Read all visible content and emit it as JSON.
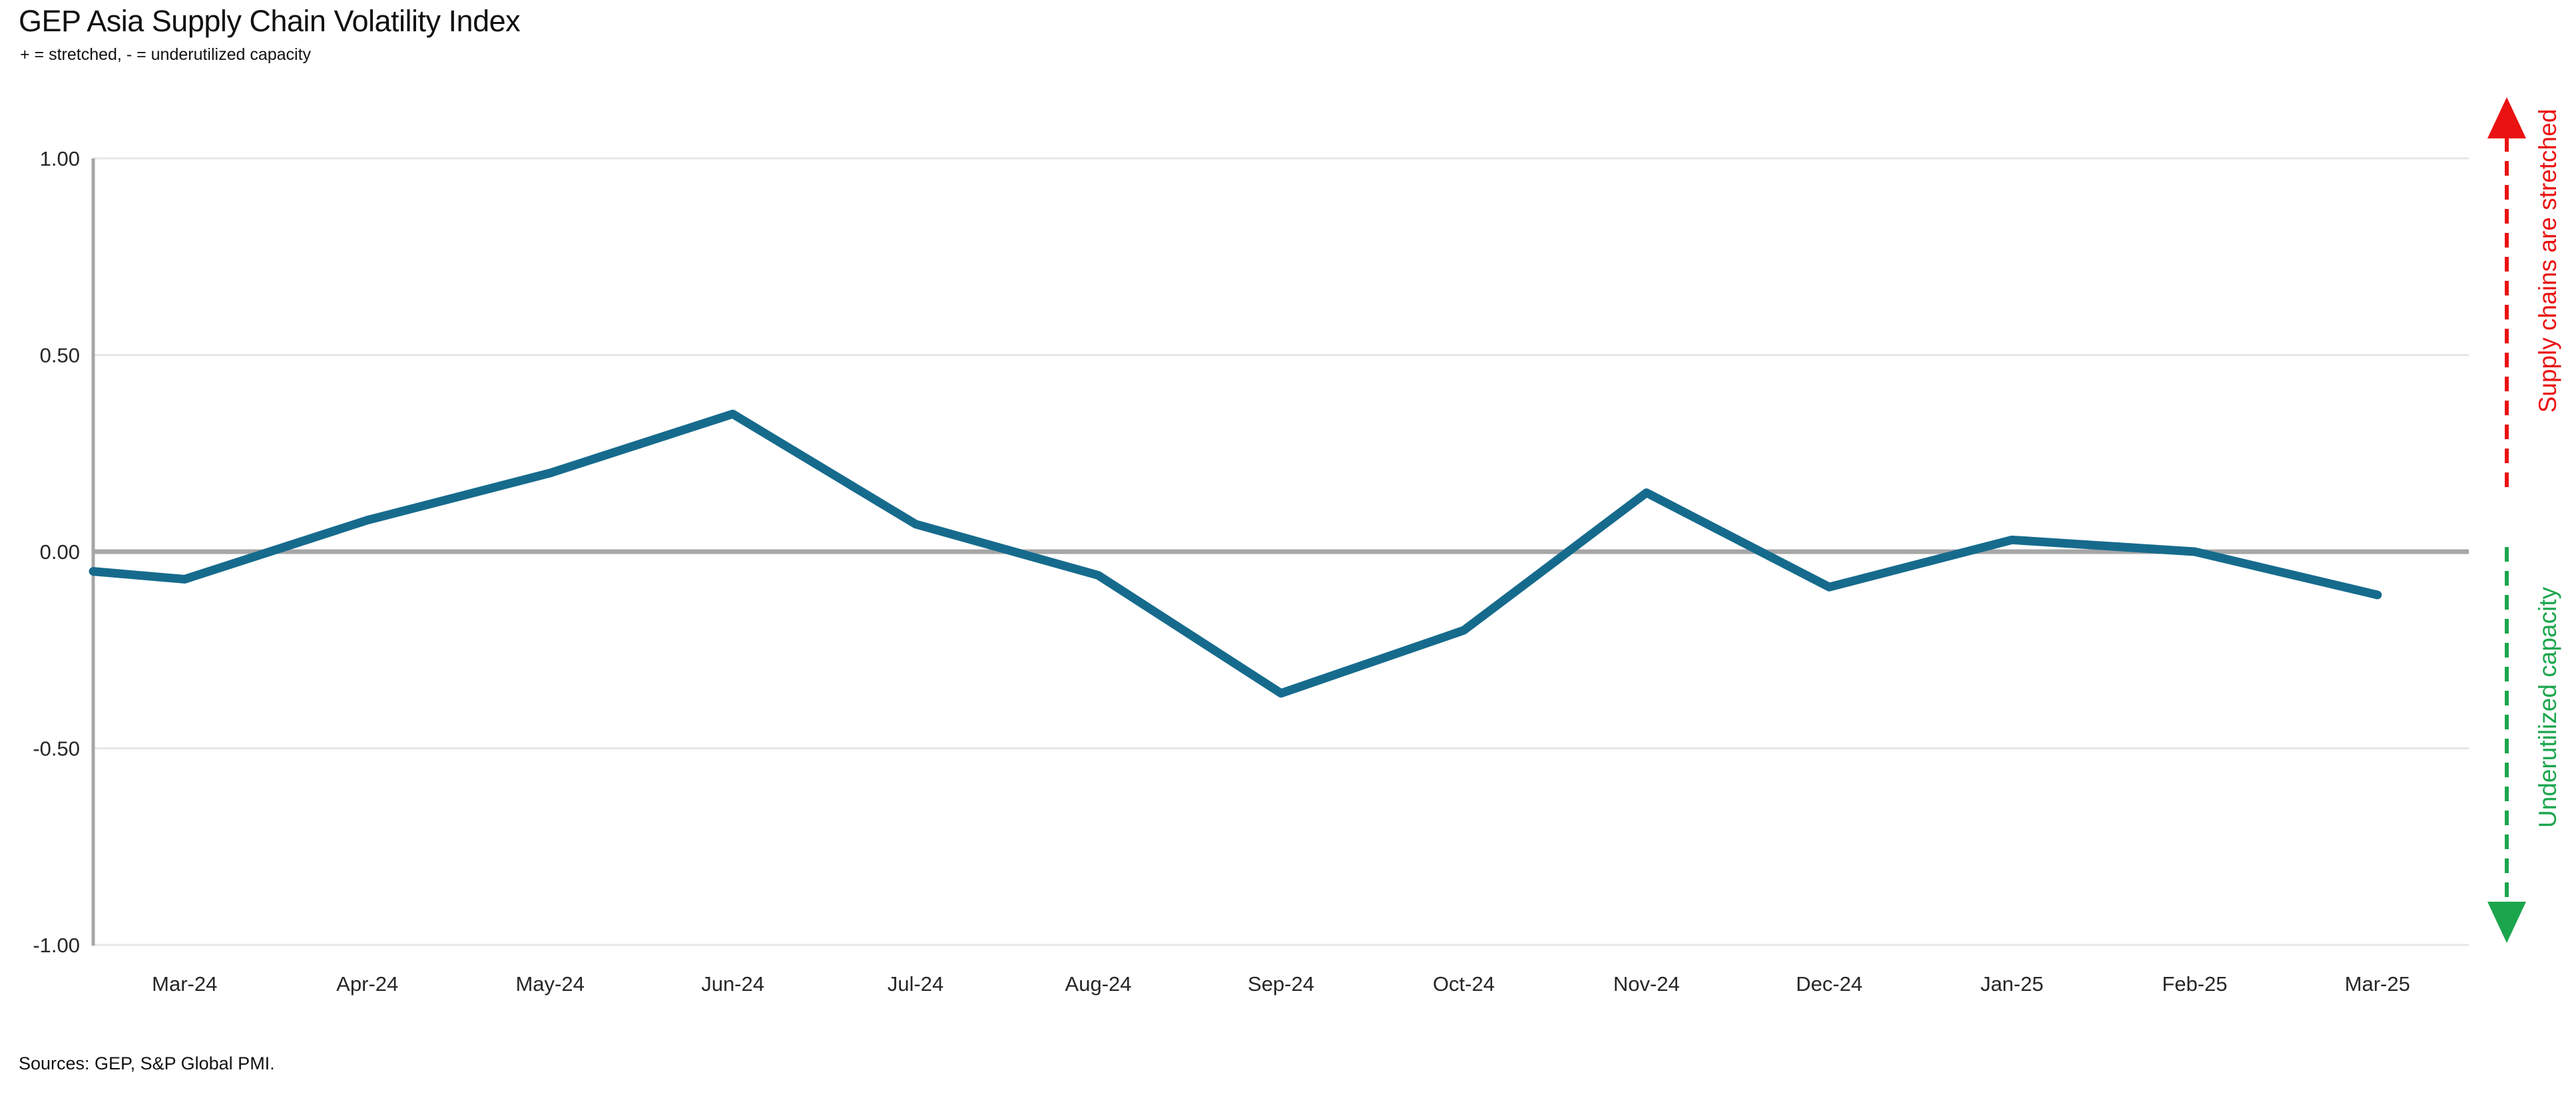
{
  "header": {
    "title": "GEP Asia Supply Chain Volatility Index",
    "subtitle": "+ = stretched, - = underutilized capacity"
  },
  "footer": {
    "sources": "Sources: GEP, S&P Global PMI."
  },
  "annotations": {
    "stretched_label": "Supply chains are stretched",
    "underutilized_label": "Underutilized capacity",
    "stretched_color": "#ea1212",
    "underutilized_color": "#1ba64d"
  },
  "chart_data": {
    "type": "line",
    "title": "GEP Asia Supply Chain Volatility Index",
    "xlabel": "",
    "ylabel": "",
    "x": [
      "Mar-24",
      "Apr-24",
      "May-24",
      "Jun-24",
      "Jul-24",
      "Aug-24",
      "Sep-24",
      "Oct-24",
      "Nov-24",
      "Dec-24",
      "Jan-25",
      "Feb-25",
      "Mar-25"
    ],
    "values": [
      -0.07,
      0.08,
      0.2,
      0.35,
      0.07,
      -0.06,
      -0.36,
      -0.2,
      0.15,
      -0.09,
      0.03,
      0.0,
      -0.11
    ],
    "leading_edge_value": -0.05,
    "series_color": "#166b8d",
    "ylim": [
      -1.0,
      1.0
    ],
    "yticks": [
      1.0,
      0.5,
      0.0,
      -0.5,
      -1.0
    ],
    "ytick_labels": [
      "1.00",
      "0.50",
      "0.00",
      "-0.50",
      "-1.00"
    ],
    "grid": "horizontal-light, darker zero baseline",
    "legend": "none"
  }
}
